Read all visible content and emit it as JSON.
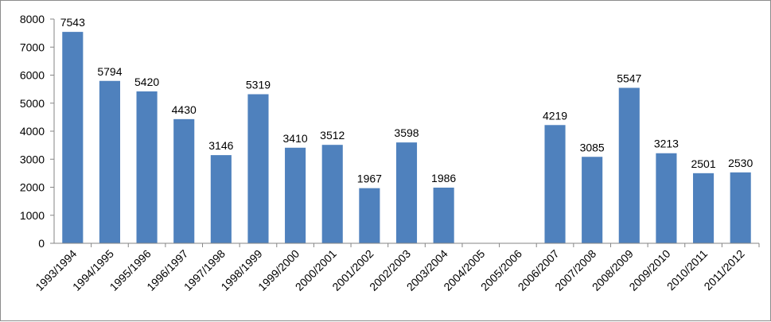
{
  "chart_data": {
    "type": "bar",
    "title": "",
    "xlabel": "",
    "ylabel": "",
    "ylim": [
      0,
      8000
    ],
    "yticks": [
      0,
      1000,
      2000,
      3000,
      4000,
      5000,
      6000,
      7000,
      8000
    ],
    "ytick_labels": [
      "0",
      "1000",
      "2000",
      "3000",
      "4000",
      "5000",
      "6000",
      "7000",
      "8000"
    ],
    "grid": false,
    "legend": "none",
    "bar_color": "#4F81BD",
    "categories": [
      "1993/1994",
      "1994/1995",
      "1995/1996",
      "1996/1997",
      "1997/1998",
      "1998/1999",
      "1999/2000",
      "2000/2001",
      "2001/2002",
      "2002/2003",
      "2003/2004",
      "2004/2005",
      "2005/2006",
      "2006/2007",
      "2007/2008",
      "2008/2009",
      "2009/2010",
      "2010/2011",
      "2011/2012"
    ],
    "values": [
      7543,
      5794,
      5420,
      4430,
      3146,
      5319,
      3410,
      3512,
      1967,
      3598,
      1986,
      null,
      null,
      4219,
      3085,
      5547,
      3213,
      2501,
      2530
    ],
    "data_labels": [
      "7543",
      "5794",
      "5420",
      "4430",
      "3146",
      "5319",
      "3410",
      "3512",
      "1967",
      "3598",
      "1986",
      "",
      "",
      "4219",
      "3085",
      "5547",
      "3213",
      "2501",
      "2530"
    ]
  }
}
